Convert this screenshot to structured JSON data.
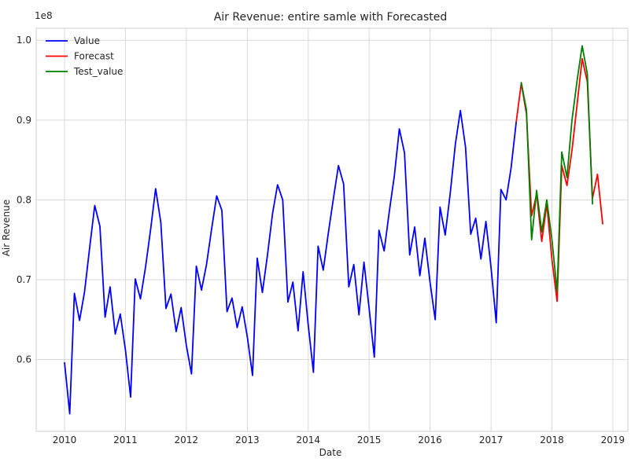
{
  "chart_data": {
    "type": "line",
    "title": "Air Revenue: entire samle with Forecasted",
    "xlabel": "Date",
    "ylabel": "Air Revenue",
    "y_offset_label": "1e8",
    "y_multiplier": 100000000,
    "xlim": [
      "2009-07-15",
      "2019-04-01"
    ],
    "ylim": [
      0.51,
      1.015
    ],
    "x_ticks": [
      {
        "date": "2010-01-01",
        "label": "2010"
      },
      {
        "date": "2011-01-01",
        "label": "2011"
      },
      {
        "date": "2012-01-01",
        "label": "2012"
      },
      {
        "date": "2013-01-01",
        "label": "2013"
      },
      {
        "date": "2014-01-01",
        "label": "2014"
      },
      {
        "date": "2015-01-01",
        "label": "2015"
      },
      {
        "date": "2016-01-01",
        "label": "2016"
      },
      {
        "date": "2017-01-01",
        "label": "2017"
      },
      {
        "date": "2018-01-01",
        "label": "2018"
      },
      {
        "date": "2019-01-01",
        "label": "2019"
      }
    ],
    "y_ticks": [
      {
        "value": 0.6,
        "label": "0.6"
      },
      {
        "value": 0.7,
        "label": "0.7"
      },
      {
        "value": 0.8,
        "label": "0.8"
      },
      {
        "value": 0.9,
        "label": "0.9"
      },
      {
        "value": 1.0,
        "label": "1.0"
      }
    ],
    "grid": true,
    "legend_position": "top-left",
    "series": [
      {
        "name": "Value",
        "color": "#0000ff",
        "x": [
          "2010-01-01",
          "2010-02-01",
          "2010-03-01",
          "2010-04-01",
          "2010-05-01",
          "2010-06-01",
          "2010-07-01",
          "2010-08-01",
          "2010-09-01",
          "2010-10-01",
          "2010-11-01",
          "2010-12-01",
          "2011-01-01",
          "2011-02-01",
          "2011-03-01",
          "2011-04-01",
          "2011-05-01",
          "2011-06-01",
          "2011-07-01",
          "2011-08-01",
          "2011-09-01",
          "2011-10-01",
          "2011-11-01",
          "2011-12-01",
          "2012-01-01",
          "2012-02-01",
          "2012-03-01",
          "2012-04-01",
          "2012-05-01",
          "2012-06-01",
          "2012-07-01",
          "2012-08-01",
          "2012-09-01",
          "2012-10-01",
          "2012-11-01",
          "2012-12-01",
          "2013-01-01",
          "2013-02-01",
          "2013-03-01",
          "2013-04-01",
          "2013-05-01",
          "2013-06-01",
          "2013-07-01",
          "2013-08-01",
          "2013-09-01",
          "2013-10-01",
          "2013-11-01",
          "2013-12-01",
          "2014-01-01",
          "2014-02-01",
          "2014-03-01",
          "2014-04-01",
          "2014-05-01",
          "2014-06-01",
          "2014-07-01",
          "2014-08-01",
          "2014-09-01",
          "2014-10-01",
          "2014-11-01",
          "2014-12-01",
          "2015-01-01",
          "2015-02-01",
          "2015-03-01",
          "2015-04-01",
          "2015-05-01",
          "2015-06-01",
          "2015-07-01",
          "2015-08-01",
          "2015-09-01",
          "2015-10-01",
          "2015-11-01",
          "2015-12-01",
          "2016-01-01",
          "2016-02-01",
          "2016-03-01",
          "2016-04-01",
          "2016-05-01",
          "2016-06-01",
          "2016-07-01",
          "2016-08-01",
          "2016-09-01",
          "2016-10-01",
          "2016-11-01",
          "2016-12-01",
          "2017-01-01",
          "2017-02-01",
          "2017-03-01",
          "2017-04-01",
          "2017-05-01",
          "2017-06-01"
        ],
        "values": [
          0.596,
          0.532,
          0.683,
          0.649,
          0.685,
          0.741,
          0.793,
          0.767,
          0.653,
          0.691,
          0.632,
          0.657,
          0.612,
          0.553,
          0.701,
          0.676,
          0.715,
          0.763,
          0.814,
          0.772,
          0.664,
          0.682,
          0.635,
          0.665,
          0.618,
          0.582,
          0.717,
          0.687,
          0.719,
          0.764,
          0.805,
          0.787,
          0.66,
          0.677,
          0.64,
          0.666,
          0.628,
          0.58,
          0.727,
          0.684,
          0.73,
          0.783,
          0.819,
          0.8,
          0.672,
          0.697,
          0.636,
          0.71,
          0.643,
          0.584,
          0.742,
          0.712,
          0.758,
          0.802,
          0.843,
          0.82,
          0.691,
          0.719,
          0.656,
          0.722,
          0.664,
          0.603,
          0.762,
          0.736,
          0.784,
          0.83,
          0.889,
          0.859,
          0.731,
          0.766,
          0.705,
          0.752,
          0.697,
          0.65,
          0.791,
          0.756,
          0.808,
          0.87,
          0.912,
          0.866,
          0.757,
          0.777,
          0.726,
          0.773,
          0.715,
          0.646,
          0.813,
          0.8,
          0.84,
          0.898
        ]
      },
      {
        "name": "Forecast",
        "color": "#ff0000",
        "x": [
          "2017-06-01",
          "2017-07-01",
          "2017-08-01",
          "2017-09-01",
          "2017-10-01",
          "2017-11-01",
          "2017-12-01",
          "2018-01-01",
          "2018-02-01",
          "2018-03-01",
          "2018-04-01",
          "2018-05-01",
          "2018-06-01",
          "2018-07-01",
          "2018-08-01",
          "2018-09-01",
          "2018-10-01",
          "2018-11-01"
        ],
        "values": [
          0.898,
          0.946,
          0.908,
          0.78,
          0.807,
          0.748,
          0.795,
          0.725,
          0.673,
          0.843,
          0.818,
          0.862,
          0.92,
          0.977,
          0.948,
          0.802,
          0.832,
          0.77
        ]
      },
      {
        "name": "Test_value",
        "color": "#008000",
        "x": [
          "2017-07-01",
          "2017-08-01",
          "2017-09-01",
          "2017-10-01",
          "2017-11-01",
          "2017-12-01",
          "2018-01-01",
          "2018-02-01",
          "2018-03-01",
          "2018-04-01",
          "2018-05-01",
          "2018-06-01",
          "2018-07-01",
          "2018-08-01",
          "2018-09-01"
        ],
        "values": [
          0.947,
          0.913,
          0.75,
          0.812,
          0.76,
          0.8,
          0.75,
          0.685,
          0.86,
          0.828,
          0.9,
          0.95,
          0.993,
          0.958,
          0.795
        ]
      }
    ]
  }
}
